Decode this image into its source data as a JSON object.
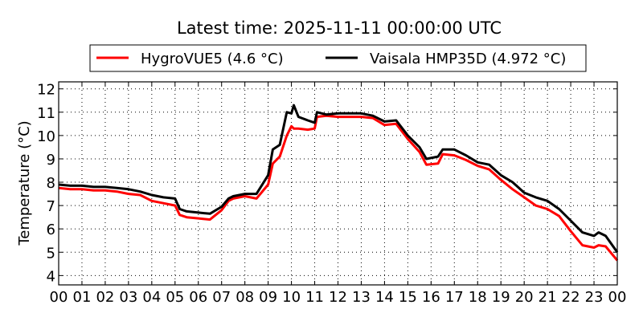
{
  "chart_data": {
    "type": "line",
    "title": "Latest time: 2025-11-11 00:00:00 UTC",
    "xlabel": "",
    "ylabel": "Temperature (°C)",
    "xlim": [
      0,
      24
    ],
    "ylim": [
      3.6,
      12.3
    ],
    "grid": true,
    "legend_placement": "top-center, above plot",
    "xticks": [
      0,
      1,
      2,
      3,
      4,
      5,
      6,
      7,
      8,
      9,
      10,
      11,
      12,
      13,
      14,
      15,
      16,
      17,
      18,
      19,
      20,
      21,
      22,
      23,
      24
    ],
    "xtick_labels": [
      "00",
      "01",
      "02",
      "03",
      "04",
      "05",
      "06",
      "07",
      "08",
      "09",
      "10",
      "11",
      "12",
      "13",
      "14",
      "15",
      "16",
      "17",
      "18",
      "19",
      "20",
      "21",
      "22",
      "23",
      "00"
    ],
    "yticks": [
      4,
      5,
      6,
      7,
      8,
      9,
      10,
      11,
      12
    ],
    "ytick_labels": [
      "4",
      "5",
      "6",
      "7",
      "8",
      "9",
      "10",
      "11",
      "12"
    ],
    "x": [
      0,
      0.5,
      1,
      1.5,
      2,
      2.5,
      3,
      3.5,
      4,
      4.5,
      5,
      5.2,
      5.5,
      6,
      6.5,
      7,
      7.3,
      7.5,
      8,
      8.5,
      9,
      9.2,
      9.5,
      9.8,
      10,
      10.1,
      10.3,
      10.7,
      11,
      11.1,
      11.5,
      12,
      12.5,
      13,
      13.5,
      14,
      14.5,
      15,
      15.5,
      15.8,
      16.3,
      16.5,
      17,
      17.5,
      18,
      18.5,
      19,
      19.5,
      20,
      20.5,
      21,
      21.5,
      22,
      22.5,
      23,
      23.2,
      23.5,
      24
    ],
    "series": [
      {
        "name": "HygroVUE5 (4.6 °C)",
        "color": "#ff0000",
        "values": [
          7.75,
          7.7,
          7.7,
          7.65,
          7.65,
          7.6,
          7.5,
          7.45,
          7.2,
          7.1,
          7.0,
          6.6,
          6.5,
          6.45,
          6.4,
          6.8,
          7.2,
          7.3,
          7.4,
          7.3,
          7.9,
          8.8,
          9.1,
          10.0,
          10.4,
          10.3,
          10.3,
          10.25,
          10.3,
          10.8,
          10.85,
          10.8,
          10.8,
          10.8,
          10.75,
          10.45,
          10.5,
          9.85,
          9.3,
          8.75,
          8.8,
          9.2,
          9.15,
          8.95,
          8.7,
          8.55,
          8.1,
          7.7,
          7.35,
          7.0,
          6.85,
          6.55,
          5.9,
          5.3,
          5.2,
          5.3,
          5.25,
          4.65
        ]
      },
      {
        "name": "Vaisala HMP35D (4.972 °C)",
        "color": "#000000",
        "values": [
          7.9,
          7.85,
          7.85,
          7.8,
          7.8,
          7.75,
          7.7,
          7.6,
          7.45,
          7.35,
          7.3,
          6.85,
          6.75,
          6.7,
          6.65,
          6.95,
          7.3,
          7.4,
          7.5,
          7.5,
          8.3,
          9.4,
          9.6,
          11.0,
          10.95,
          11.3,
          10.8,
          10.65,
          10.55,
          11.0,
          10.9,
          10.95,
          10.95,
          10.95,
          10.85,
          10.6,
          10.65,
          10.0,
          9.5,
          9.0,
          9.1,
          9.4,
          9.4,
          9.15,
          8.85,
          8.75,
          8.3,
          8.0,
          7.55,
          7.35,
          7.2,
          6.85,
          6.35,
          5.85,
          5.7,
          5.85,
          5.7,
          5.0
        ]
      }
    ]
  }
}
